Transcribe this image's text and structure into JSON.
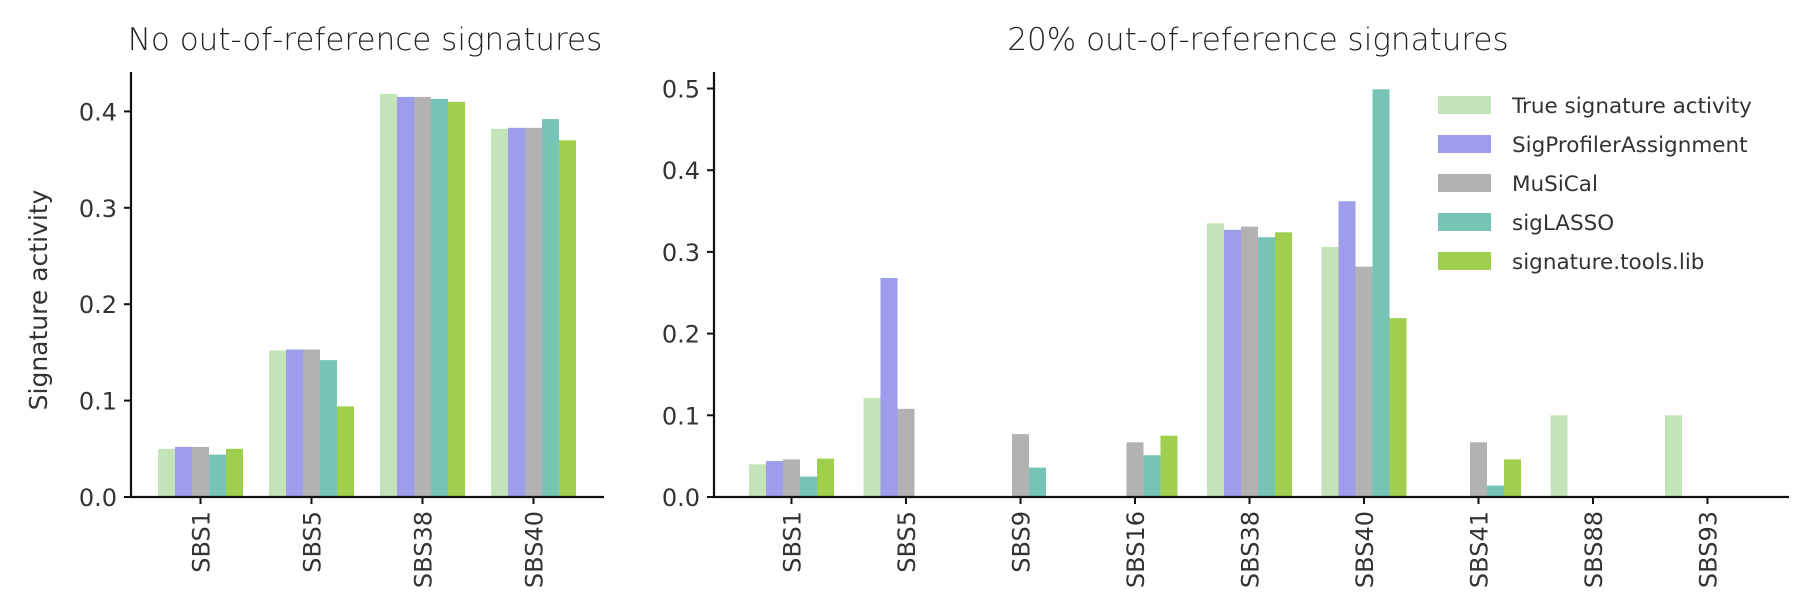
{
  "series_meta": [
    {
      "name": "True signature activity",
      "color": "#c3e4b9"
    },
    {
      "name": "SigProfilerAssignment",
      "color": "#9d9deb"
    },
    {
      "name": "MuSiCal",
      "color": "#b2b2b2"
    },
    {
      "name": "sigLASSO",
      "color": "#76c4b5"
    },
    {
      "name": "signature.tools.lib",
      "color": "#a0cf4d"
    }
  ],
  "chart_data": [
    {
      "type": "bar",
      "title": "No out-of-reference signatures",
      "xlabel": "",
      "ylabel": "Signature activity",
      "ylim": [
        0,
        0.44
      ],
      "yticks": [
        0.0,
        0.1,
        0.2,
        0.3,
        0.4
      ],
      "grid": false,
      "legend_position": "none",
      "categories": [
        "SBS1",
        "SBS5",
        "SBS38",
        "SBS40"
      ],
      "series": [
        {
          "name": "True signature activity",
          "values": [
            0.05,
            0.152,
            0.418,
            0.382
          ]
        },
        {
          "name": "SigProfilerAssignment",
          "values": [
            0.052,
            0.153,
            0.415,
            0.383
          ]
        },
        {
          "name": "MuSiCal",
          "values": [
            0.052,
            0.153,
            0.415,
            0.383
          ]
        },
        {
          "name": "sigLASSO",
          "values": [
            0.044,
            0.142,
            0.413,
            0.392
          ]
        },
        {
          "name": "signature.tools.lib",
          "values": [
            0.05,
            0.094,
            0.41,
            0.37
          ]
        }
      ]
    },
    {
      "type": "bar",
      "title": "20% out-of-reference signatures",
      "xlabel": "",
      "ylabel": "",
      "ylim": [
        0,
        0.525
      ],
      "yticks": [
        0.0,
        0.1,
        0.2,
        0.3,
        0.4,
        0.5
      ],
      "grid": false,
      "legend_position": "upper right",
      "categories": [
        "SBS1",
        "SBS5",
        "SBS9",
        "SBS16",
        "SBS38",
        "SBS40",
        "SBS41",
        "SBS88",
        "SBS93"
      ],
      "series": [
        {
          "name": "True signature activity",
          "values": [
            0.04,
            0.121,
            0,
            0,
            0.335,
            0.306,
            0,
            0.1,
            0.1
          ]
        },
        {
          "name": "SigProfilerAssignment",
          "values": [
            0.044,
            0.268,
            0,
            0,
            0.327,
            0.362,
            0,
            0,
            0
          ]
        },
        {
          "name": "MuSiCal",
          "values": [
            0.046,
            0.108,
            0.077,
            0.067,
            0.331,
            0.282,
            0.067,
            0,
            0
          ]
        },
        {
          "name": "sigLASSO",
          "values": [
            0.025,
            0,
            0.036,
            0.051,
            0.318,
            0.499,
            0.014,
            0,
            0
          ]
        },
        {
          "name": "signature.tools.lib",
          "values": [
            0.047,
            0,
            0,
            0.075,
            0.324,
            0.219,
            0.046,
            0,
            0
          ]
        }
      ]
    }
  ]
}
